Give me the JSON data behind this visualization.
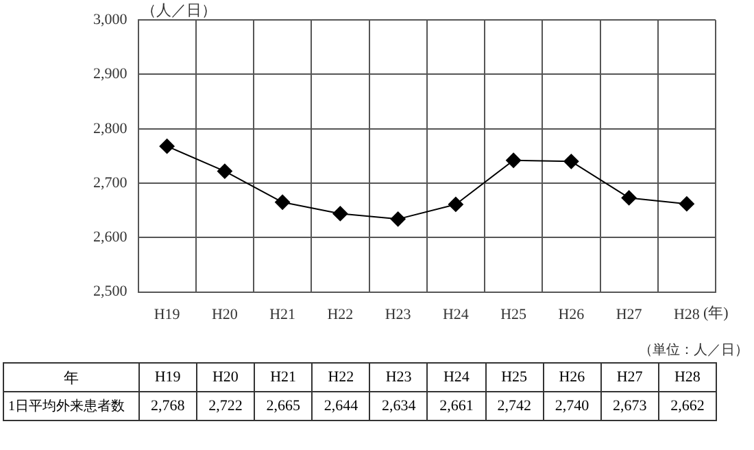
{
  "chart_data": {
    "type": "line",
    "ylabel": "（人／日）",
    "xlabel": "(年)",
    "categories": [
      "H19",
      "H20",
      "H21",
      "H22",
      "H23",
      "H24",
      "H25",
      "H26",
      "H27",
      "H28"
    ],
    "series": [
      {
        "name": "1日平均外来患者数",
        "color": "#000000",
        "values": [
          2768,
          2722,
          2665,
          2644,
          2634,
          2661,
          2742,
          2740,
          2673,
          2662
        ],
        "value_labels": [
          "2,768",
          "2,722",
          "2,665",
          "2,644",
          "2,634",
          "2,661",
          "2,742",
          "2,740",
          "2,673",
          "2,662"
        ]
      }
    ],
    "ylim": [
      2500,
      3000
    ],
    "yticks": [
      {
        "value": 2500,
        "label": "2,500"
      },
      {
        "value": 2600,
        "label": "2,600"
      },
      {
        "value": 2700,
        "label": "2,700"
      },
      {
        "value": 2800,
        "label": "2,800"
      },
      {
        "value": 2900,
        "label": "2,900"
      },
      {
        "value": 3000,
        "label": "3,000"
      }
    ],
    "grid": true,
    "legend": false,
    "marker": "diamond",
    "line_style": "solid",
    "annotations": [
      "（単位：人／日）",
      "年"
    ]
  }
}
